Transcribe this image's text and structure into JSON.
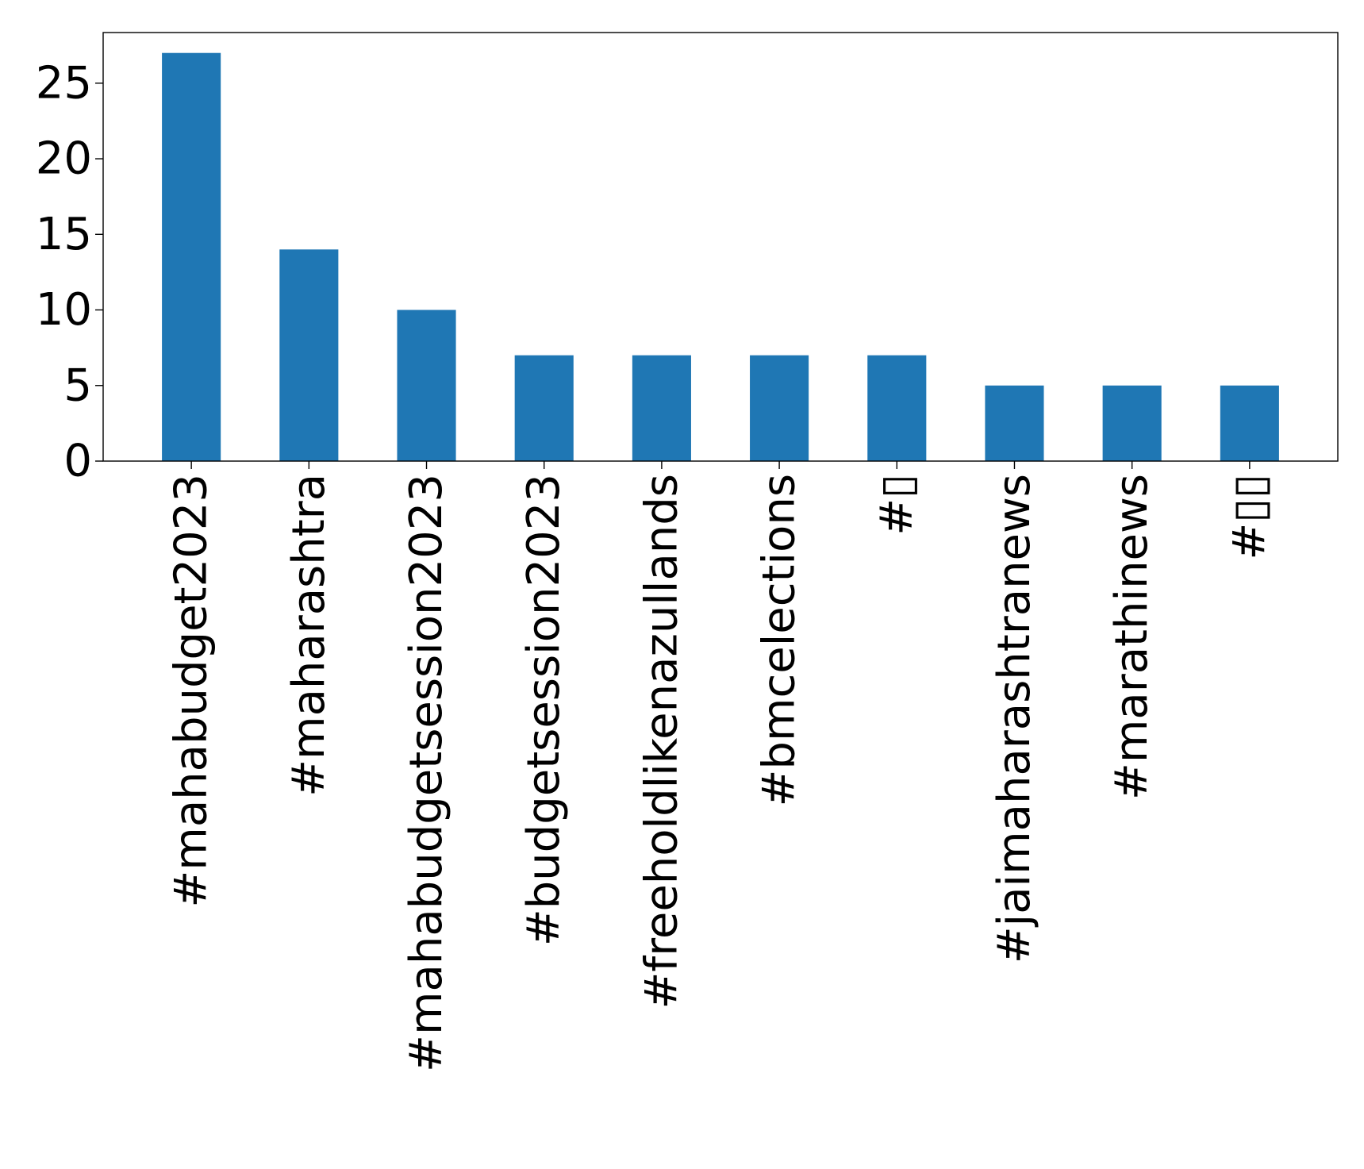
{
  "chart_data": {
    "type": "bar",
    "title": "",
    "xlabel": "",
    "ylabel": "",
    "categories": [
      "#mahabudget2023",
      "#maharashtra",
      "#mahabudgetsession2023",
      "#budgetsession2023",
      "#freeholdlikenazullands",
      "#bmcelections",
      "#▯",
      "#jaimaharashtranews",
      "#marathinews",
      "#▯▯"
    ],
    "values": [
      27,
      14,
      10,
      7,
      7,
      7,
      7,
      5,
      5,
      5
    ],
    "ylim": [
      0,
      28.35
    ],
    "yticks": [
      0,
      5,
      10,
      15,
      20,
      25
    ],
    "grid": false,
    "legend": "none",
    "colors": {
      "bar": "#1f77b4",
      "axes": "#000000",
      "background": "#ffffff"
    }
  }
}
